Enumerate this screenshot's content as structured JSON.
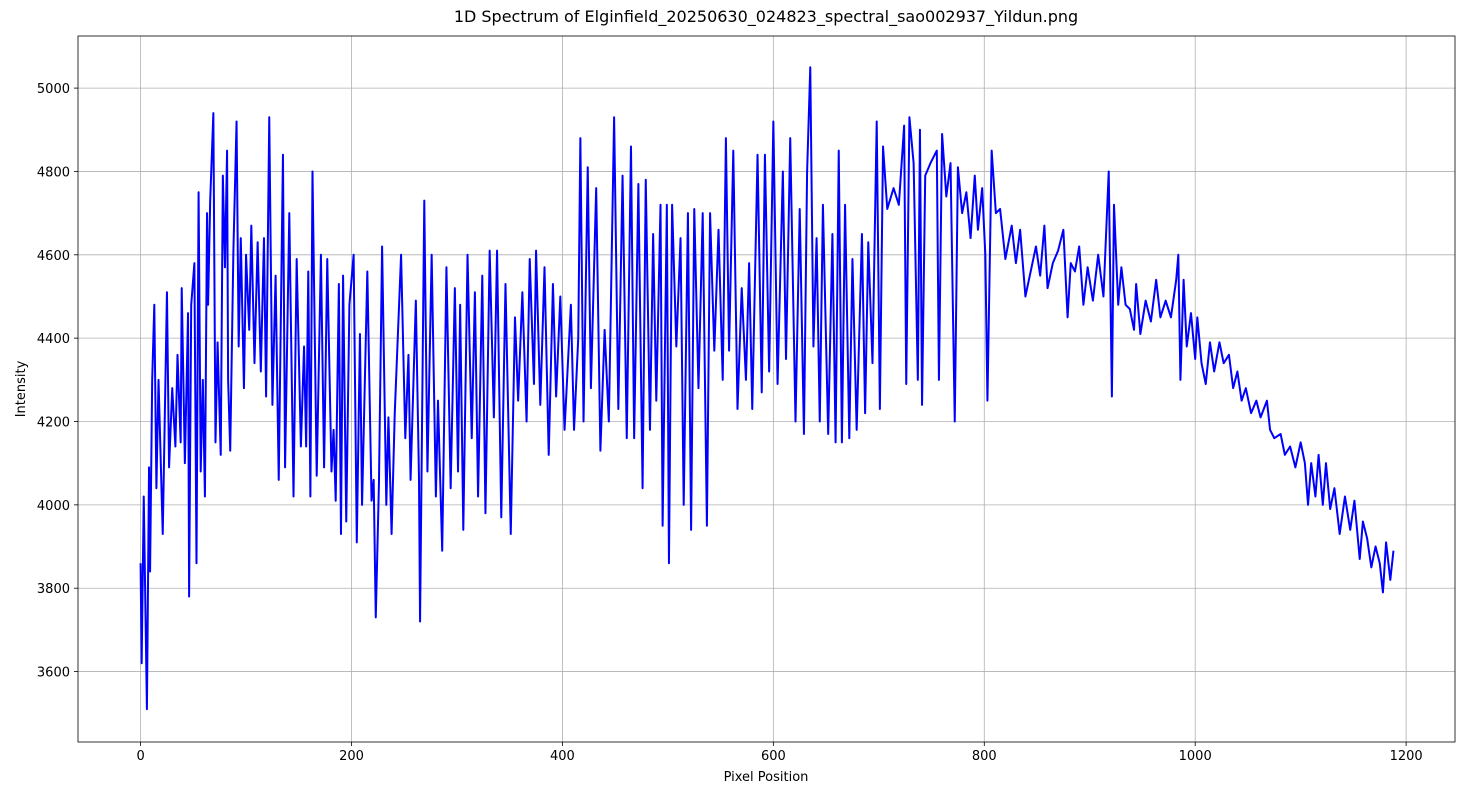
{
  "chart_data": {
    "type": "line",
    "title": "1D Spectrum of Elginfield_20250630_024823_spectral_sao002937_Yildun.png",
    "x_label": "Pixel Position",
    "y_label": "Intensity",
    "xlim": [
      -59.35,
      1246.35
    ],
    "ylim": [
      3431,
      5125
    ],
    "xticks": [
      0,
      200,
      400,
      600,
      800,
      1000,
      1200
    ],
    "yticks": [
      3600,
      3800,
      4000,
      4200,
      4400,
      4600,
      4800,
      5000
    ],
    "grid": true,
    "series": [
      {
        "color": "#0000ff",
        "x": [
          0,
          1,
          3,
          6,
          8,
          9,
          11,
          13,
          15,
          17,
          21,
          25,
          27,
          30,
          33,
          35,
          38,
          39,
          42,
          45,
          46,
          48,
          51,
          53,
          55,
          57,
          59,
          61,
          63,
          64,
          66,
          69,
          71,
          73,
          76,
          78,
          80,
          82,
          83,
          85,
          88,
          91,
          93,
          95,
          98,
          100,
          103,
          105,
          108,
          111,
          114,
          117,
          119,
          122,
          125,
          128,
          131,
          135,
          137,
          141,
          145,
          148,
          152,
          155,
          157,
          159,
          161,
          163,
          167,
          171,
          174,
          177,
          181,
          183,
          185,
          188,
          190,
          192,
          195,
          198,
          202,
          205,
          208,
          210,
          215,
          219,
          221,
          223,
          226,
          229,
          233,
          235,
          238,
          241,
          247,
          251,
          254,
          256,
          261,
          264,
          265,
          269,
          272,
          276,
          280,
          282,
          286,
          290,
          294,
          298,
          301,
          303,
          306,
          310,
          314,
          317,
          320,
          324,
          327,
          331,
          335,
          338,
          342,
          346,
          351,
          355,
          358,
          362,
          366,
          369,
          373,
          375,
          379,
          383,
          387,
          391,
          394,
          398,
          402,
          408,
          411,
          415,
          417,
          420,
          424,
          427,
          432,
          436,
          440,
          444,
          449,
          453,
          457,
          461,
          465,
          468,
          472,
          476,
          479,
          483,
          486,
          489,
          493,
          495,
          499,
          501,
          504,
          508,
          512,
          515,
          519,
          522,
          525,
          529,
          533,
          537,
          540,
          544,
          548,
          552,
          555,
          558,
          562,
          566,
          570,
          574,
          577,
          580,
          585,
          589,
          592,
          596,
          600,
          604,
          609,
          612,
          616,
          621,
          625,
          629,
          632,
          635,
          638,
          641,
          644,
          647,
          652,
          656,
          659,
          662,
          665,
          668,
          672,
          675,
          679,
          684,
          687,
          690,
          694,
          698,
          701,
          704,
          708,
          714,
          719,
          724,
          726,
          729,
          733,
          737,
          739,
          741,
          744,
          749,
          755,
          757,
          760,
          764,
          768,
          772,
          775,
          779,
          783,
          787,
          791,
          794,
          798,
          801,
          803,
          807,
          811,
          815,
          820,
          826,
          830,
          834,
          839,
          844,
          849,
          853,
          857,
          860,
          865,
          870,
          875,
          879,
          882,
          886,
          890,
          894,
          898,
          903,
          908,
          913,
          918,
          921,
          923,
          927,
          930,
          934,
          938,
          942,
          944,
          948,
          953,
          958,
          963,
          967,
          972,
          977,
          982,
          984,
          986,
          989,
          992,
          996,
          1000,
          1002,
          1006,
          1010,
          1014,
          1018,
          1023,
          1027,
          1032,
          1036,
          1040,
          1044,
          1048,
          1053,
          1058,
          1062,
          1068,
          1071,
          1075,
          1081,
          1085,
          1090,
          1095,
          1100,
          1104,
          1107,
          1110,
          1114,
          1117,
          1121,
          1124,
          1128,
          1132,
          1137,
          1142,
          1147,
          1151,
          1156,
          1159,
          1163,
          1167,
          1171,
          1175,
          1178,
          1181,
          1185,
          1188
        ],
        "values": [
          3860,
          3620,
          4020,
          3510,
          4090,
          3840,
          4300,
          4480,
          4040,
          4300,
          3930,
          4510,
          4090,
          4280,
          4140,
          4360,
          4150,
          4520,
          4100,
          4460,
          3780,
          4480,
          4580,
          3860,
          4750,
          4080,
          4300,
          4020,
          4700,
          4480,
          4730,
          4940,
          4150,
          4390,
          4120,
          4790,
          4570,
          4850,
          4300,
          4130,
          4610,
          4920,
          4380,
          4640,
          4280,
          4600,
          4420,
          4670,
          4340,
          4630,
          4320,
          4640,
          4260,
          4930,
          4240,
          4550,
          4060,
          4840,
          4090,
          4700,
          4020,
          4590,
          4140,
          4380,
          4140,
          4560,
          4020,
          4800,
          4070,
          4600,
          4090,
          4590,
          4080,
          4180,
          4010,
          4530,
          3930,
          4550,
          3960,
          4480,
          4600,
          3910,
          4410,
          4000,
          4560,
          4010,
          4060,
          3730,
          4050,
          4620,
          4000,
          4210,
          3930,
          4220,
          4600,
          4160,
          4360,
          4060,
          4490,
          4060,
          3720,
          4730,
          4080,
          4600,
          4020,
          4250,
          3890,
          4570,
          4040,
          4520,
          4080,
          4480,
          3940,
          4600,
          4160,
          4510,
          4020,
          4550,
          3980,
          4610,
          4210,
          4610,
          3970,
          4530,
          3930,
          4450,
          4250,
          4510,
          4200,
          4590,
          4290,
          4610,
          4240,
          4570,
          4120,
          4530,
          4260,
          4500,
          4180,
          4480,
          4180,
          4400,
          4880,
          4200,
          4810,
          4280,
          4760,
          4130,
          4420,
          4200,
          4930,
          4230,
          4790,
          4160,
          4860,
          4160,
          4770,
          4040,
          4780,
          4180,
          4650,
          4250,
          4720,
          3950,
          4720,
          3860,
          4720,
          4380,
          4640,
          4000,
          4700,
          3940,
          4710,
          4280,
          4700,
          3950,
          4700,
          4370,
          4660,
          4300,
          4880,
          4370,
          4850,
          4230,
          4520,
          4300,
          4580,
          4230,
          4840,
          4270,
          4840,
          4320,
          4920,
          4290,
          4800,
          4350,
          4880,
          4200,
          4710,
          4170,
          4800,
          5050,
          4380,
          4640,
          4200,
          4720,
          4170,
          4650,
          4150,
          4850,
          4150,
          4720,
          4160,
          4590,
          4180,
          4650,
          4220,
          4630,
          4340,
          4920,
          4230,
          4860,
          4710,
          4760,
          4720,
          4910,
          4290,
          4930,
          4820,
          4300,
          4900,
          4240,
          4790,
          4820,
          4850,
          4300,
          4890,
          4740,
          4820,
          4200,
          4810,
          4700,
          4750,
          4640,
          4790,
          4660,
          4760,
          4600,
          4250,
          4850,
          4700,
          4710,
          4590,
          4670,
          4580,
          4660,
          4500,
          4560,
          4620,
          4550,
          4670,
          4520,
          4580,
          4610,
          4660,
          4450,
          4580,
          4560,
          4620,
          4480,
          4570,
          4490,
          4600,
          4500,
          4800,
          4260,
          4720,
          4480,
          4570,
          4480,
          4470,
          4420,
          4530,
          4410,
          4490,
          4440,
          4540,
          4450,
          4490,
          4450,
          4540,
          4600,
          4300,
          4540,
          4380,
          4460,
          4350,
          4450,
          4340,
          4290,
          4390,
          4320,
          4390,
          4340,
          4360,
          4280,
          4320,
          4250,
          4280,
          4220,
          4250,
          4210,
          4250,
          4180,
          4160,
          4170,
          4120,
          4140,
          4090,
          4150,
          4100,
          4000,
          4100,
          4020,
          4120,
          4000,
          4100,
          3990,
          4040,
          3930,
          4020,
          3940,
          4010,
          3870,
          3960,
          3920,
          3850,
          3900,
          3860,
          3790,
          3910,
          3820,
          3890
        ]
      }
    ]
  }
}
